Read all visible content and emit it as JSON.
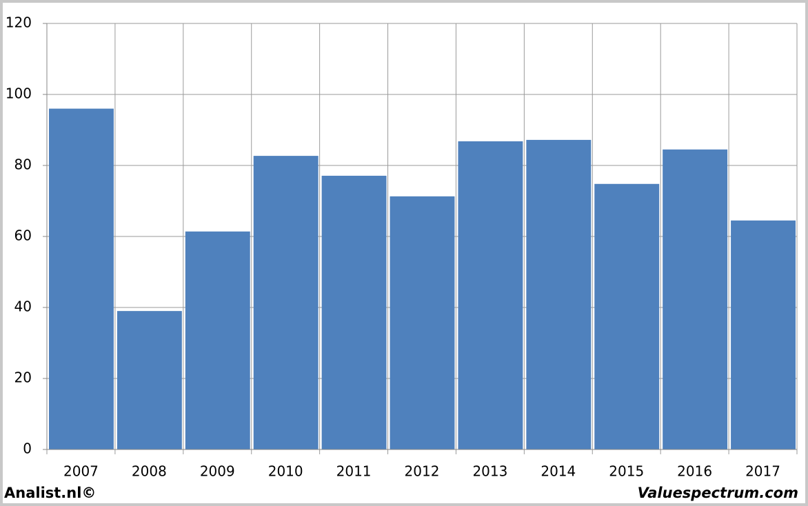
{
  "chart_data": {
    "type": "bar",
    "categories": [
      "2007",
      "2008",
      "2009",
      "2010",
      "2011",
      "2012",
      "2013",
      "2014",
      "2015",
      "2016",
      "2017"
    ],
    "values": [
      96,
      39,
      61.4,
      82.7,
      77.1,
      71.3,
      86.8,
      87.2,
      74.8,
      84.5,
      64.5
    ],
    "color": "#4f81bd",
    "ylim": [
      0,
      120
    ],
    "yticks": [
      0,
      20,
      40,
      60,
      80,
      100,
      120
    ],
    "grid": true
  },
  "footer": {
    "left": "Analist.nl©",
    "right": "Valuespectrum.com"
  }
}
